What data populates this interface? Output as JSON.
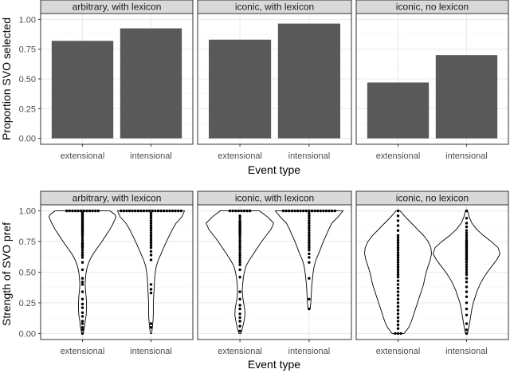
{
  "colors": {
    "bar_fill": "#595959",
    "strip_bg": "#d9d9d9",
    "grid_major": "#ebebeb",
    "grid_minor": "#f5f5f5",
    "panel_border": "#333333",
    "tick_text": "#4d4d4d",
    "violin_line": "#000000",
    "dot": "#000000"
  },
  "chart_data": [
    {
      "type": "bar",
      "facets": [
        "arbitrary, with lexicon",
        "iconic, with lexicon",
        "iconic, no lexicon"
      ],
      "categories": [
        "extensional",
        "intensional"
      ],
      "xlabel": "Event type",
      "ylabel": "Proportion SVO selected",
      "ylim": [
        0,
        1
      ],
      "yticks": [
        "0.00",
        "0.25",
        "0.50",
        "0.75",
        "1.00"
      ],
      "grid": true,
      "values": [
        [
          0.82,
          0.925
        ],
        [
          0.83,
          0.965
        ],
        [
          0.47,
          0.7
        ]
      ]
    },
    {
      "type": "violin",
      "facets": [
        "arbitrary, with lexicon",
        "iconic, with lexicon",
        "iconic, no lexicon"
      ],
      "categories": [
        "extensional",
        "intensional"
      ],
      "xlabel": "Event type",
      "ylabel": "Strength of SVO pref",
      "ylim": [
        0,
        1
      ],
      "yticks": [
        "0.00",
        "0.25",
        "0.50",
        "0.75",
        "1.00"
      ],
      "grid": true,
      "groups": [
        [
          {
            "density": [
              [
                0.0,
                0.02
              ],
              [
                0.05,
                0.06
              ],
              [
                0.1,
                0.08
              ],
              [
                0.15,
                0.11
              ],
              [
                0.2,
                0.12
              ],
              [
                0.25,
                0.12
              ],
              [
                0.3,
                0.11
              ],
              [
                0.35,
                0.09
              ],
              [
                0.4,
                0.08
              ],
              [
                0.45,
                0.09
              ],
              [
                0.5,
                0.11
              ],
              [
                0.55,
                0.15
              ],
              [
                0.6,
                0.22
              ],
              [
                0.65,
                0.32
              ],
              [
                0.7,
                0.45
              ],
              [
                0.75,
                0.58
              ],
              [
                0.8,
                0.7
              ],
              [
                0.85,
                0.82
              ],
              [
                0.9,
                0.92
              ],
              [
                0.95,
                1.0
              ],
              [
                0.97,
                0.97
              ],
              [
                1.0,
                0.82
              ]
            ],
            "points": [
              0.0,
              0.03,
              0.05,
              0.08,
              0.1,
              0.14,
              0.17,
              0.21,
              0.24,
              0.28,
              0.34,
              0.4,
              0.42,
              0.45,
              0.52,
              0.58,
              0.62,
              0.64,
              0.66,
              0.68,
              0.7,
              0.71,
              0.72,
              0.73,
              0.74,
              0.76,
              0.78,
              0.8,
              0.81,
              0.82,
              0.83,
              0.84,
              0.85,
              0.86,
              0.87,
              0.88,
              0.89,
              0.9,
              0.91,
              0.92,
              0.93,
              0.94,
              0.95,
              0.96,
              0.97,
              0.98,
              0.99,
              1.0,
              1.0,
              1.0,
              1.0,
              1.0,
              1.0,
              1.0,
              1.0,
              1.0,
              1.0,
              1.0,
              1.0
            ]
          },
          {
            "density": [
              [
                0.0,
                0.02
              ],
              [
                0.05,
                0.04
              ],
              [
                0.1,
                0.06
              ],
              [
                0.15,
                0.07
              ],
              [
                0.2,
                0.07
              ],
              [
                0.25,
                0.07
              ],
              [
                0.3,
                0.08
              ],
              [
                0.35,
                0.09
              ],
              [
                0.4,
                0.1
              ],
              [
                0.45,
                0.11
              ],
              [
                0.5,
                0.13
              ],
              [
                0.55,
                0.16
              ],
              [
                0.6,
                0.22
              ],
              [
                0.65,
                0.3
              ],
              [
                0.7,
                0.38
              ],
              [
                0.75,
                0.46
              ],
              [
                0.8,
                0.55
              ],
              [
                0.85,
                0.64
              ],
              [
                0.9,
                0.75
              ],
              [
                0.95,
                0.92
              ],
              [
                1.0,
                1.0
              ]
            ],
            "points": [
              0.05,
              0.08,
              0.33,
              0.36,
              0.4,
              0.6,
              0.64,
              0.67,
              0.7,
              0.72,
              0.74,
              0.76,
              0.78,
              0.8,
              0.82,
              0.84,
              0.86,
              0.88,
              0.9,
              0.92,
              0.94,
              0.96,
              0.98,
              1.0,
              1.0,
              1.0,
              1.0,
              1.0,
              1.0,
              1.0,
              1.0,
              1.0,
              1.0,
              1.0,
              1.0,
              1.0,
              1.0,
              1.0,
              1.0,
              1.0,
              1.0,
              1.0,
              1.0,
              1.0,
              1.0
            ]
          }
        ],
        [
          {
            "density": [
              [
                0.0,
                0.03
              ],
              [
                0.05,
                0.08
              ],
              [
                0.1,
                0.12
              ],
              [
                0.15,
                0.15
              ],
              [
                0.2,
                0.14
              ],
              [
                0.25,
                0.11
              ],
              [
                0.3,
                0.08
              ],
              [
                0.35,
                0.07
              ],
              [
                0.4,
                0.08
              ],
              [
                0.45,
                0.1
              ],
              [
                0.5,
                0.13
              ],
              [
                0.55,
                0.18
              ],
              [
                0.6,
                0.28
              ],
              [
                0.65,
                0.4
              ],
              [
                0.7,
                0.52
              ],
              [
                0.75,
                0.64
              ],
              [
                0.8,
                0.78
              ],
              [
                0.85,
                0.92
              ],
              [
                0.9,
                1.0
              ],
              [
                0.95,
                0.82
              ],
              [
                1.0,
                0.58
              ]
            ],
            "points": [
              0.02,
              0.06,
              0.1,
              0.13,
              0.16,
              0.2,
              0.23,
              0.28,
              0.34,
              0.46,
              0.52,
              0.56,
              0.58,
              0.6,
              0.62,
              0.64,
              0.66,
              0.68,
              0.7,
              0.72,
              0.74,
              0.76,
              0.78,
              0.8,
              0.81,
              0.82,
              0.83,
              0.84,
              0.85,
              0.86,
              0.87,
              0.88,
              0.89,
              0.9,
              0.91,
              0.92,
              0.94,
              0.96,
              1.0,
              1.0,
              1.0,
              1.0,
              1.0,
              1.0,
              1.0,
              1.0
            ]
          },
          {
            "density": [
              [
                0.2,
                0.03
              ],
              [
                0.25,
                0.05
              ],
              [
                0.3,
                0.06
              ],
              [
                0.35,
                0.07
              ],
              [
                0.4,
                0.08
              ],
              [
                0.45,
                0.1
              ],
              [
                0.5,
                0.12
              ],
              [
                0.55,
                0.15
              ],
              [
                0.6,
                0.2
              ],
              [
                0.65,
                0.28
              ],
              [
                0.7,
                0.35
              ],
              [
                0.75,
                0.42
              ],
              [
                0.8,
                0.5
              ],
              [
                0.85,
                0.58
              ],
              [
                0.9,
                0.67
              ],
              [
                0.95,
                0.85
              ],
              [
                1.0,
                1.0
              ]
            ],
            "points": [
              0.2,
              0.28,
              0.45,
              0.58,
              0.62,
              0.65,
              0.68,
              0.7,
              0.72,
              0.74,
              0.76,
              0.78,
              0.8,
              0.82,
              0.84,
              0.86,
              0.88,
              0.9,
              0.92,
              0.94,
              0.96,
              0.98,
              1.0,
              1.0,
              1.0,
              1.0,
              1.0,
              1.0,
              1.0,
              1.0,
              1.0,
              1.0,
              1.0,
              1.0,
              1.0,
              1.0,
              1.0,
              1.0,
              1.0,
              1.0,
              1.0
            ]
          }
        ],
        [
          {
            "density": [
              [
                0.0,
                0.18
              ],
              [
                0.05,
                0.32
              ],
              [
                0.1,
                0.4
              ],
              [
                0.15,
                0.46
              ],
              [
                0.2,
                0.52
              ],
              [
                0.25,
                0.58
              ],
              [
                0.3,
                0.64
              ],
              [
                0.35,
                0.7
              ],
              [
                0.4,
                0.76
              ],
              [
                0.45,
                0.8
              ],
              [
                0.5,
                0.84
              ],
              [
                0.55,
                0.9
              ],
              [
                0.6,
                0.96
              ],
              [
                0.65,
                1.0
              ],
              [
                0.7,
                0.98
              ],
              [
                0.75,
                0.9
              ],
              [
                0.8,
                0.76
              ],
              [
                0.85,
                0.58
              ],
              [
                0.9,
                0.4
              ],
              [
                0.95,
                0.22
              ],
              [
                1.0,
                0.06
              ]
            ],
            "points": [
              0.0,
              0.0,
              0.0,
              0.04,
              0.07,
              0.1,
              0.13,
              0.16,
              0.19,
              0.22,
              0.25,
              0.28,
              0.31,
              0.34,
              0.37,
              0.4,
              0.43,
              0.46,
              0.48,
              0.5,
              0.52,
              0.54,
              0.56,
              0.58,
              0.6,
              0.62,
              0.64,
              0.66,
              0.68,
              0.7,
              0.72,
              0.74,
              0.76,
              0.78,
              0.8,
              0.84,
              0.88,
              0.92,
              0.96,
              1.0
            ]
          },
          {
            "density": [
              [
                0.0,
                0.03
              ],
              [
                0.05,
                0.07
              ],
              [
                0.1,
                0.1
              ],
              [
                0.15,
                0.13
              ],
              [
                0.2,
                0.16
              ],
              [
                0.25,
                0.2
              ],
              [
                0.3,
                0.26
              ],
              [
                0.35,
                0.32
              ],
              [
                0.4,
                0.4
              ],
              [
                0.45,
                0.5
              ],
              [
                0.5,
                0.62
              ],
              [
                0.55,
                0.76
              ],
              [
                0.6,
                0.9
              ],
              [
                0.65,
                1.0
              ],
              [
                0.7,
                0.94
              ],
              [
                0.75,
                0.74
              ],
              [
                0.8,
                0.5
              ],
              [
                0.85,
                0.3
              ],
              [
                0.9,
                0.16
              ],
              [
                0.95,
                0.08
              ],
              [
                1.0,
                0.03
              ]
            ],
            "points": [
              0.0,
              0.03,
              0.08,
              0.15,
              0.2,
              0.25,
              0.3,
              0.34,
              0.38,
              0.42,
              0.45,
              0.48,
              0.5,
              0.52,
              0.54,
              0.56,
              0.58,
              0.6,
              0.61,
              0.62,
              0.63,
              0.64,
              0.65,
              0.66,
              0.67,
              0.68,
              0.69,
              0.7,
              0.71,
              0.72,
              0.73,
              0.74,
              0.75,
              0.76,
              0.78,
              0.8,
              0.82,
              0.84,
              0.87,
              0.9,
              0.94,
              1.0
            ]
          }
        ]
      ]
    }
  ]
}
